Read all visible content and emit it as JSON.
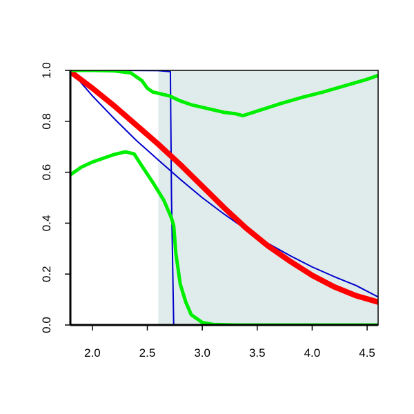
{
  "chart_data": {
    "type": "line",
    "title": "",
    "xlabel": "",
    "ylabel": "",
    "xlim": [
      1.8,
      4.6
    ],
    "ylim": [
      0.0,
      1.0
    ],
    "xticks": [
      2.0,
      2.5,
      3.0,
      3.5,
      4.0,
      4.5
    ],
    "xtick_labels": [
      "2.0",
      "2.5",
      "3.0",
      "3.5",
      "4.0",
      "4.5"
    ],
    "yticks": [
      0.0,
      0.2,
      0.4,
      0.6,
      0.8,
      1.0
    ],
    "ytick_labels": [
      "0.0",
      "0.2",
      "0.4",
      "0.6",
      "0.8",
      "1.0"
    ],
    "grid": false,
    "legend": "none",
    "shaded_region": {
      "x": [
        2.6,
        4.6
      ],
      "color": "#e0eceb"
    },
    "series": [
      {
        "color": "#0000cc",
        "style": "thin",
        "x": [
          1.8,
          2.0,
          2.2,
          2.4,
          2.6,
          2.8,
          3.0,
          3.2,
          3.4,
          3.6,
          3.8,
          4.0,
          4.2,
          4.4,
          4.6
        ],
        "y": [
          1.0,
          0.9,
          0.81,
          0.725,
          0.648,
          0.572,
          0.5,
          0.435,
          0.375,
          0.32,
          0.272,
          0.228,
          0.19,
          0.155,
          0.11
        ]
      },
      {
        "color": "#0000cc",
        "style": "thin",
        "x": [
          1.8,
          2.2,
          2.6,
          2.71,
          2.72,
          2.74,
          3.0,
          3.5,
          4.0,
          4.6
        ],
        "y": [
          1.0,
          1.0,
          0.999,
          0.995,
          0.5,
          0.0,
          0.0,
          0.0,
          0.0,
          0.0
        ]
      },
      {
        "color": "#ff0000",
        "style": "thick",
        "x": [
          1.8,
          2.0,
          2.2,
          2.4,
          2.6,
          2.8,
          3.0,
          3.2,
          3.4,
          3.6,
          3.8,
          4.0,
          4.2,
          4.4,
          4.6
        ],
        "y": [
          0.995,
          0.93,
          0.86,
          0.785,
          0.71,
          0.63,
          0.545,
          0.46,
          0.38,
          0.31,
          0.25,
          0.195,
          0.15,
          0.115,
          0.09
        ]
      },
      {
        "color": "#00ee00",
        "style": "medium",
        "x": [
          1.8,
          2.0,
          2.2,
          2.35,
          2.45,
          2.5,
          2.55,
          2.6,
          2.7,
          2.8,
          2.9,
          3.0,
          3.1,
          3.2,
          3.3,
          3.37,
          3.5,
          3.7,
          3.9,
          4.1,
          4.3,
          4.5,
          4.6
        ],
        "y": [
          1.0,
          1.0,
          0.998,
          0.99,
          0.96,
          0.93,
          0.915,
          0.91,
          0.9,
          0.88,
          0.865,
          0.855,
          0.845,
          0.835,
          0.83,
          0.822,
          0.84,
          0.868,
          0.893,
          0.915,
          0.94,
          0.965,
          0.98
        ]
      },
      {
        "color": "#00ee00",
        "style": "medium",
        "x": [
          1.8,
          1.9,
          2.0,
          2.1,
          2.2,
          2.3,
          2.38,
          2.45,
          2.55,
          2.65,
          2.72,
          2.74,
          2.76,
          2.8,
          2.85,
          2.9,
          3.0,
          3.1,
          3.3,
          3.6,
          4.0,
          4.6
        ],
        "y": [
          0.59,
          0.62,
          0.64,
          0.655,
          0.67,
          0.68,
          0.672,
          0.625,
          0.56,
          0.49,
          0.42,
          0.39,
          0.28,
          0.16,
          0.09,
          0.04,
          0.01,
          0.002,
          0.0,
          0.0,
          0.0,
          0.0
        ]
      }
    ]
  }
}
